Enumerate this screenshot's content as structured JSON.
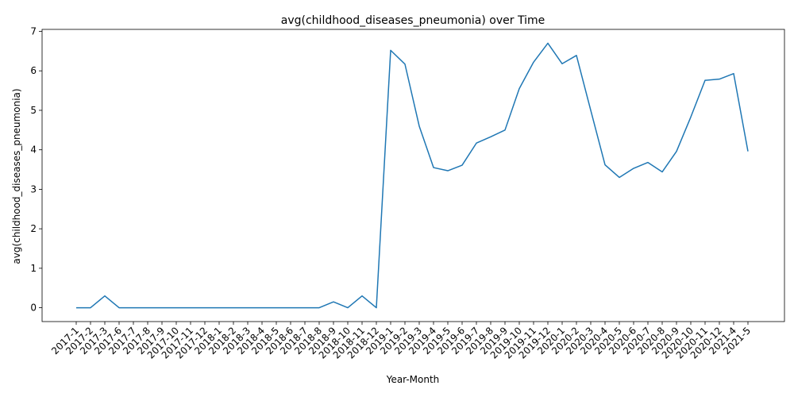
{
  "chart_data": {
    "type": "line",
    "title": "avg(childhood_diseases_pneumonia) over Time",
    "xlabel": "Year-Month",
    "ylabel": "avg(childhood_diseases_pneumonia)",
    "ylim": [
      -0.35,
      7.05
    ],
    "yticks": [
      0,
      1,
      2,
      3,
      4,
      5,
      6,
      7
    ],
    "grid": false,
    "line_color": "#1f77b4",
    "x": [
      "2017-1",
      "2017-2",
      "2017-3",
      "2017-6",
      "2017-7",
      "2017-8",
      "2017-9",
      "2017-10",
      "2017-11",
      "2017-12",
      "2018-1",
      "2018-2",
      "2018-3",
      "2018-4",
      "2018-5",
      "2018-6",
      "2018-7",
      "2018-8",
      "2018-9",
      "2018-10",
      "2018-11",
      "2018-12",
      "2019-1",
      "2019-2",
      "2019-3",
      "2019-4",
      "2019-5",
      "2019-6",
      "2019-7",
      "2019-8",
      "2019-9",
      "2019-10",
      "2019-11",
      "2019-12",
      "2020-1",
      "2020-2",
      "2020-3",
      "2020-4",
      "2020-5",
      "2020-6",
      "2020-7",
      "2020-8",
      "2020-9",
      "2020-10",
      "2020-11",
      "2020-12",
      "2021-4",
      "2021-5"
    ],
    "values": [
      0,
      0,
      0.3,
      0,
      0,
      0,
      0,
      0,
      0,
      0,
      0,
      0,
      0,
      0,
      0,
      0,
      0,
      0,
      0.15,
      0,
      0.3,
      0,
      6.52,
      6.17,
      4.6,
      3.55,
      3.47,
      3.61,
      4.17,
      4.33,
      4.5,
      5.55,
      6.22,
      6.7,
      6.18,
      6.39,
      5.0,
      3.62,
      3.3,
      3.53,
      3.68,
      3.44,
      3.96,
      4.83,
      5.76,
      5.79,
      5.93,
      3.96
    ]
  }
}
